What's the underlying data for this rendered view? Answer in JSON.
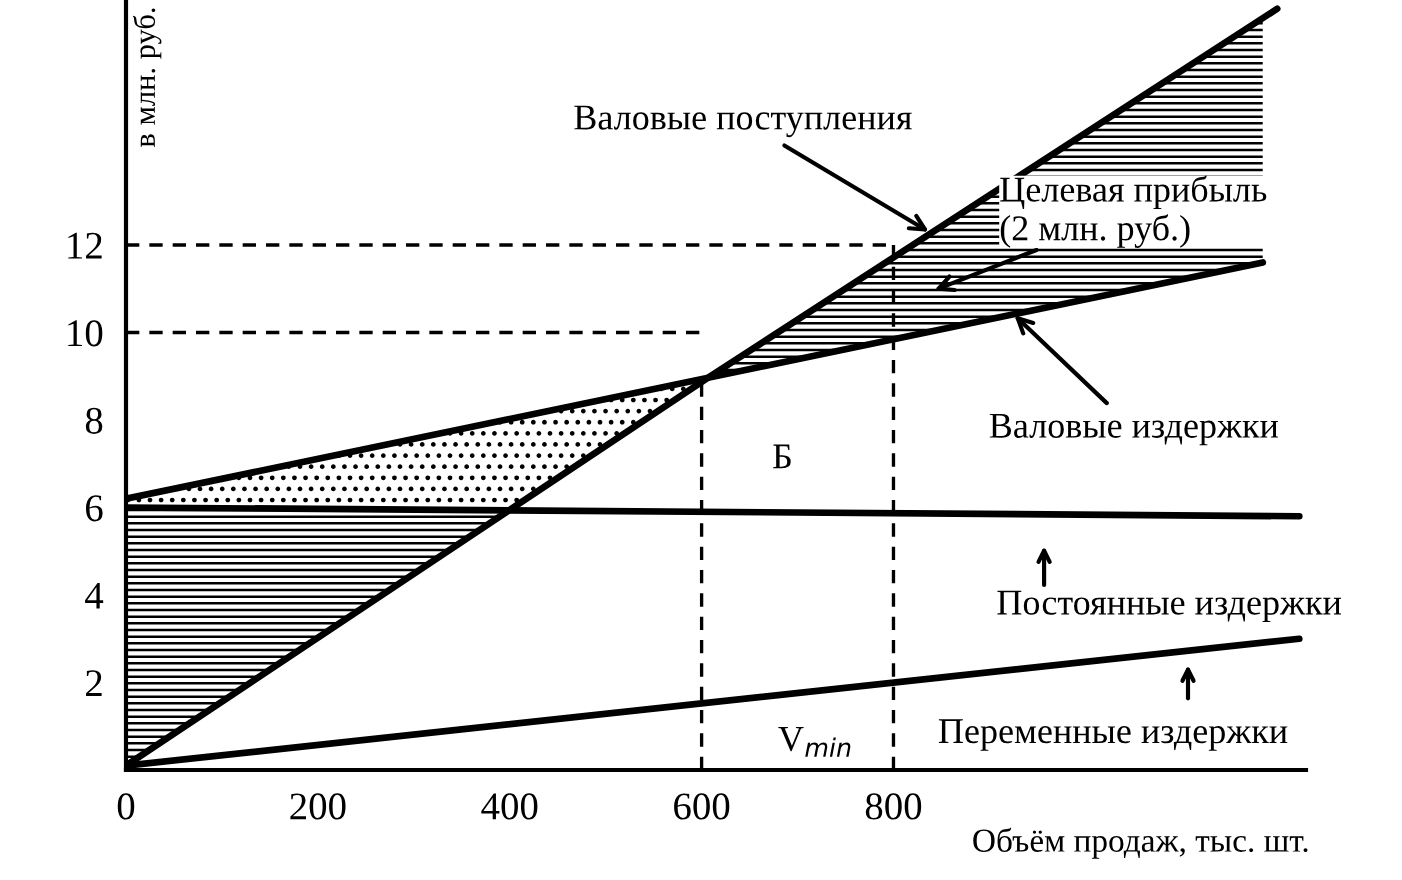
{
  "chart_data": {
    "type": "line",
    "xlabel": "Объём продаж, тыс. шт.",
    "ylabel": "в млн. руб.",
    "xlim": [
      0,
      1230
    ],
    "ylim": [
      0,
      17.6
    ],
    "xticks": [
      0,
      200,
      400,
      600,
      800
    ],
    "yticks": [
      2,
      4,
      6,
      8,
      10,
      12
    ],
    "line_style": "solid",
    "series": [
      {
        "color": "#000000",
        "x": [
          0,
          609,
          1200
        ],
        "values": [
          0.1,
          9.0,
          17.4
        ]
      },
      {
        "color": "#000000",
        "x": [
          0,
          1185
        ],
        "values": [
          6.2,
          11.6
        ]
      },
      {
        "color": "#000000",
        "x": [
          0,
          1223
        ],
        "values": [
          6.0,
          5.8
        ]
      },
      {
        "color": "#000000",
        "x": [
          0,
          1223
        ],
        "values": [
          0.1,
          3.0
        ]
      },
      {
        "color": "#000000",
        "line_style": "dashed",
        "x": [
          0,
          800
        ],
        "values": [
          12,
          12
        ]
      },
      {
        "color": "#000000",
        "line_style": "dashed",
        "x": [
          0,
          600
        ],
        "values": [
          10,
          10
        ]
      },
      {
        "color": "#000000",
        "line_style": "dashed",
        "x": [
          600,
          600
        ],
        "values": [
          0,
          9.0
        ]
      },
      {
        "color": "#000000",
        "line_style": "dashed",
        "x": [
          800,
          800
        ],
        "values": [
          0,
          12
        ]
      }
    ],
    "annotations": [
      {
        "text": "Валовые поступления",
        "x": 837,
        "y": 12.3
      },
      "Целевая прибыль\n(2 млн. руб.)",
      {
        "text": "Валовые издержки",
        "x": 926,
        "y": 10.4
      },
      {
        "text": "Б",
        "x": 609,
        "y": 9.0
      },
      {
        "text": "Постоянные издержки",
        "x": 957,
        "y": 5.85
      },
      {
        "text": "Переменные издержки",
        "x": 1107,
        "y": 2.72
      },
      {
        "text": "V$_{min}$",
        "x": 600,
        "y": 0
      }
    ]
  }
}
